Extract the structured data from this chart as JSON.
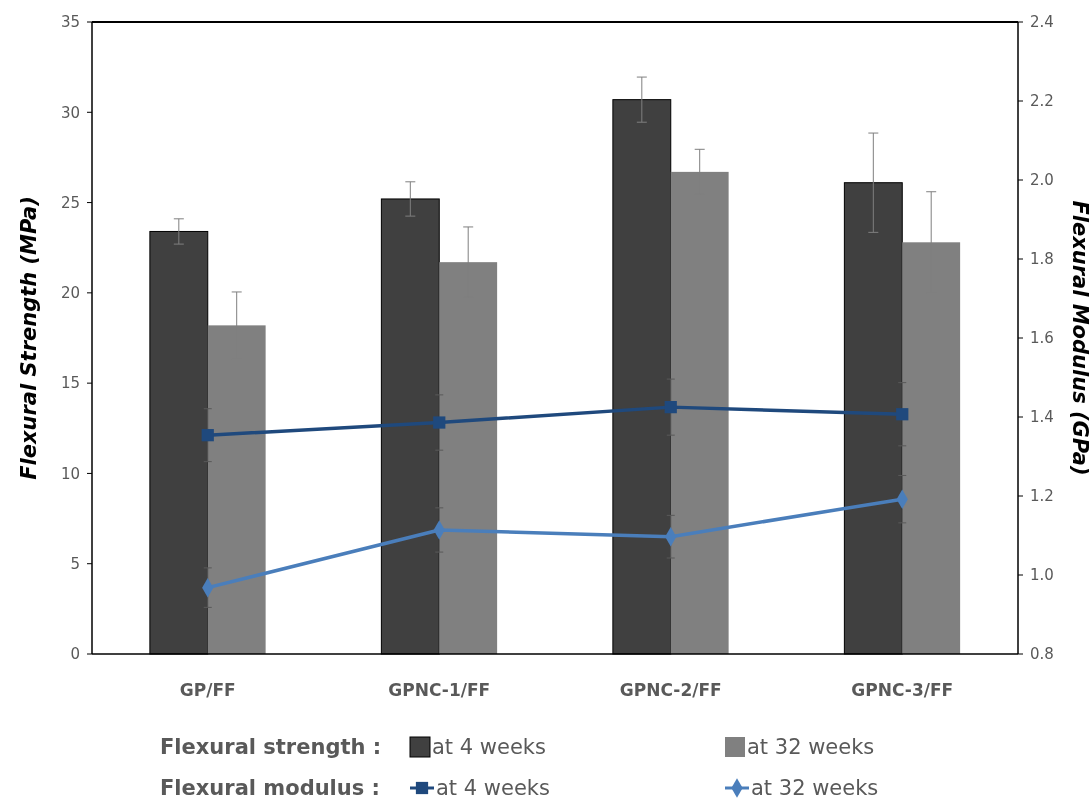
{
  "chart_data": {
    "type": "bar",
    "categories": [
      "GP/FF",
      "GPNC-1/FF",
      "GPNC-2/FF",
      "GPNC-3/FF"
    ],
    "ylabel": "Flexural Strength (MPa)",
    "y2label": "Flexural Modulus (GPa)",
    "ylim": [
      0,
      35
    ],
    "yticks": [
      0,
      5,
      10,
      15,
      20,
      25,
      30,
      35
    ],
    "y2lim": [
      0.8,
      2.4
    ],
    "y2ticks": [
      {
        "value": 0.8,
        "label": "0.8"
      },
      {
        "value": 1.0,
        "label": "1.0"
      },
      {
        "value": 1.2,
        "label": "1.2"
      },
      {
        "value": 1.4,
        "label": "1.4"
      },
      {
        "value": 1.6,
        "label": "1.6"
      },
      {
        "value": 1.8,
        "label": "1.8"
      },
      {
        "value": 2.0,
        "label": "2.0"
      },
      {
        "value": 2.2,
        "label": "2.2"
      },
      {
        "value": 2.4,
        "label": "2.4"
      }
    ],
    "grid": false,
    "legend": "bottom",
    "annotations": [
      "Flexural strength :",
      "Flexural modulus :"
    ],
    "series": [
      {
        "name": "at 4 weeks",
        "color": "#404040",
        "values": [
          23.4,
          25.2,
          30.7,
          26.1
        ],
        "errors": [
          0.7,
          0.95,
          1.25,
          2.75
        ]
      },
      {
        "name": "at 32 weeks",
        "color": "#808080",
        "values": [
          18.2,
          21.7,
          26.7,
          22.8
        ],
        "errors": [
          1.85,
          1.95,
          1.25,
          2.8
        ]
      },
      {
        "name": "at 4 weeks",
        "type": "line",
        "axis": "y2",
        "marker": "square",
        "color": "#1f497d",
        "values": [
          1.354,
          1.386,
          1.425,
          1.407
        ],
        "errors": [
          0.067,
          0.07,
          0.071,
          0.08
        ]
      },
      {
        "name": "at 32 weeks",
        "type": "line",
        "axis": "y2",
        "marker": "diamond",
        "color": "#4a7ebb",
        "values": [
          0.968,
          1.114,
          1.097,
          1.192
        ],
        "errors": [
          0.05,
          0.056,
          0.054,
          0.06
        ]
      }
    ]
  }
}
